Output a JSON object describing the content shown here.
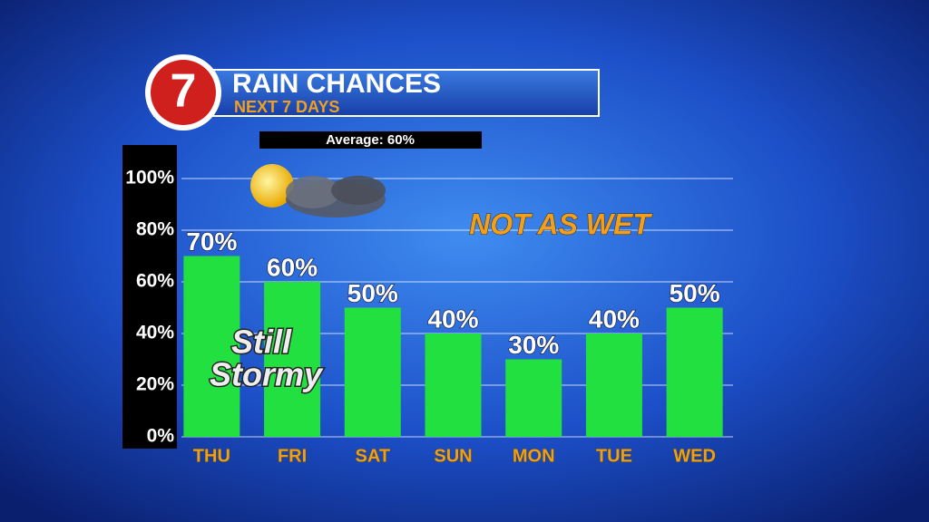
{
  "chart_data": {
    "type": "bar",
    "title": "RAIN CHANCES",
    "subtitle": "NEXT 7 DAYS",
    "logo": "7",
    "annotations": [
      "Average: 60%",
      "NOT AS WET",
      "Still",
      "Stormy"
    ],
    "categories": [
      "THU",
      "FRI",
      "SAT",
      "SUN",
      "MON",
      "TUE",
      "WED"
    ],
    "values": [
      70,
      60,
      50,
      40,
      30,
      40,
      50
    ],
    "value_labels": [
      "70%",
      "60%",
      "50%",
      "40%",
      "30%",
      "40%",
      "50%"
    ],
    "color": "#22e040",
    "ylim": [
      0,
      100
    ],
    "yticks": [
      {
        "value": 0,
        "label": "0%"
      },
      {
        "value": 20,
        "label": "20%"
      },
      {
        "value": 40,
        "label": "40%"
      },
      {
        "value": 60,
        "label": "60%"
      },
      {
        "value": 80,
        "label": "80%"
      },
      {
        "value": 100,
        "label": "100%"
      }
    ],
    "grid": true
  }
}
